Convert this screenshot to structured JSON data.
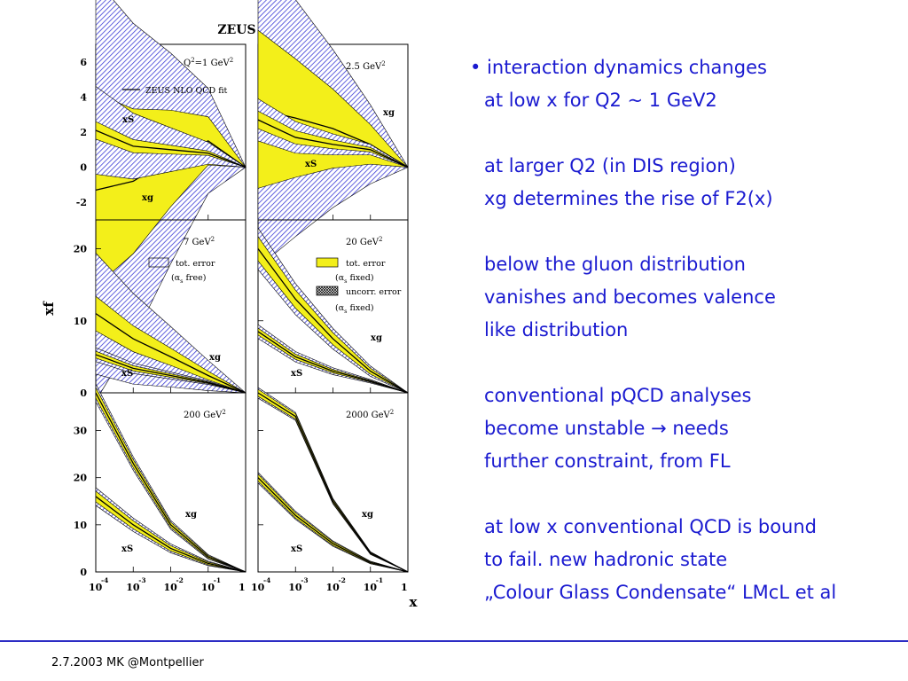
{
  "figure": {
    "title": "ZEUS",
    "y_axis_label": "xf",
    "x_axis_label": "x",
    "x_ticks": [
      "10",
      "10",
      "10",
      "10",
      "1"
    ],
    "x_tick_exps": [
      "-4",
      "-3",
      "-2",
      "-1"
    ],
    "legend_fit": "ZEUS NLO QCD fit",
    "legend_free": {
      "tot": "tot. error",
      "alpha": "(α",
      "sub": "s",
      "suffix": " free)"
    },
    "legend_fixed": {
      "tot": "tot. error",
      "alpha1": "(α",
      "sub1": "s",
      "suffix1": " fixed)",
      "uncorr": "uncorr. error",
      "alpha2": "(α",
      "sub2": "s",
      "suffix2": " fixed)"
    },
    "curve_xg": "xg",
    "curve_xs": "xS"
  },
  "chart_data": [
    {
      "type": "line",
      "panel": "Q2=1 GeV2",
      "label_q": "Q",
      "label_sup": "2",
      "label_rest": "=1 GeV",
      "label_unit_sup": "2",
      "ylim": [
        -3,
        7
      ],
      "yticks": [
        -2,
        0,
        2,
        4,
        6
      ],
      "x": [
        0.0001,
        0.001,
        0.01,
        0.1,
        1
      ],
      "series": [
        {
          "name": "xg",
          "values": [
            -1.3,
            -0.8,
            0.5,
            1.5,
            0
          ]
        },
        {
          "name": "xS",
          "values": [
            2.1,
            1.2,
            1.0,
            0.8,
            0
          ]
        }
      ]
    },
    {
      "type": "line",
      "panel": "2.5 GeV2",
      "label_q": "",
      "label_sup": "",
      "label_rest": "2.5 GeV",
      "label_unit_sup": "2",
      "ylim": [
        -3,
        7
      ],
      "yticks": [
        -2,
        0,
        2,
        4,
        6
      ],
      "x": [
        0.0001,
        0.001,
        0.01,
        0.1,
        1
      ],
      "series": [
        {
          "name": "xg",
          "values": [
            3.3,
            2.8,
            2.2,
            1.3,
            0
          ]
        },
        {
          "name": "xS",
          "values": [
            2.7,
            1.7,
            1.3,
            1.0,
            0
          ]
        }
      ]
    },
    {
      "type": "line",
      "panel": "7 GeV2",
      "label_q": "",
      "label_sup": "",
      "label_rest": "7 GeV",
      "label_unit_sup": "2",
      "ylim": [
        0,
        24
      ],
      "yticks": [
        0,
        10,
        20
      ],
      "x": [
        0.0001,
        0.001,
        0.01,
        0.1,
        1
      ],
      "series": [
        {
          "name": "xg",
          "values": [
            11,
            7.5,
            5,
            2.4,
            0
          ]
        },
        {
          "name": "xS",
          "values": [
            5.3,
            3.4,
            2.4,
            1.4,
            0
          ]
        }
      ]
    },
    {
      "type": "line",
      "panel": "20 GeV2",
      "label_q": "",
      "label_sup": "",
      "label_rest": "20 GeV",
      "label_unit_sup": "2",
      "ylim": [
        0,
        24
      ],
      "yticks": [
        0,
        10,
        20
      ],
      "x": [
        0.0001,
        0.001,
        0.01,
        0.1,
        1
      ],
      "series": [
        {
          "name": "xg",
          "values": [
            20,
            13,
            7.5,
            3,
            0
          ]
        },
        {
          "name": "xS",
          "values": [
            8.5,
            5,
            3,
            1.6,
            0
          ]
        }
      ]
    },
    {
      "type": "line",
      "panel": "200 GeV2",
      "label_q": "",
      "label_sup": "",
      "label_rest": "200 GeV",
      "label_unit_sup": "2",
      "ylim": [
        0,
        38
      ],
      "yticks": [
        0,
        10,
        20,
        30
      ],
      "x": [
        0.0001,
        0.001,
        0.01,
        0.1,
        1
      ],
      "series": [
        {
          "name": "xg",
          "values": [
            38,
            23,
            10,
            3.2,
            0
          ]
        },
        {
          "name": "xS",
          "values": [
            16,
            10,
            5,
            1.8,
            0
          ]
        }
      ]
    },
    {
      "type": "line",
      "panel": "2000 GeV2",
      "label_q": "",
      "label_sup": "",
      "label_rest": "2000 GeV",
      "label_unit_sup": "2",
      "ylim": [
        0,
        38
      ],
      "yticks": [
        0,
        10,
        20,
        30
      ],
      "x": [
        0.0001,
        0.001,
        0.01,
        0.1,
        1
      ],
      "series": [
        {
          "name": "xg",
          "values": [
            38,
            33,
            15,
            4,
            0
          ]
        },
        {
          "name": "xS",
          "values": [
            20,
            12,
            6,
            2,
            0
          ]
        }
      ]
    }
  ],
  "bullets": [
    "• interaction dynamics changes",
    "at low x for Q2 ~ 1 GeV2",
    "",
    "at larger Q2 (in DIS region)",
    "xg determines the rise of F2(x)",
    "",
    "below the gluon distribution",
    "vanishes and becomes valence",
    "like distribution",
    "",
    "conventional pQCD analyses",
    "become unstable → needs",
    "further constraint, from FL",
    "",
    "at low x conventional QCD is bound",
    "to fail. new hadronic state",
    "„Colour Glass Condensate“ LMcL et al"
  ],
  "footer": "2.7.2003 MK @Montpellier",
  "colors": {
    "text_blue": "#1a1ad0",
    "rule_blue": "#2c2cc4",
    "band_yellow": "#f3ef1a",
    "hatch_blue": "#3b3bd6"
  }
}
